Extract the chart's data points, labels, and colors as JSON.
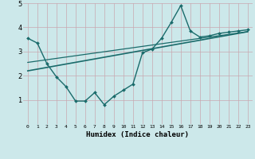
{
  "xlabel": "Humidex (Indice chaleur)",
  "bg_color": "#cce8ea",
  "grid_color": "#add8dc",
  "line_color": "#1a6b6b",
  "xlim": [
    -0.5,
    23.5
  ],
  "ylim": [
    0,
    5
  ],
  "xticks": [
    0,
    1,
    2,
    3,
    4,
    5,
    6,
    7,
    8,
    9,
    10,
    11,
    12,
    13,
    14,
    15,
    16,
    17,
    18,
    19,
    20,
    21,
    22,
    23
  ],
  "yticks": [
    1,
    2,
    3,
    4,
    5
  ],
  "curve_x": [
    0,
    1,
    2,
    3,
    4,
    5,
    6,
    7,
    8,
    9,
    10,
    11,
    12,
    13,
    14,
    15,
    16,
    17,
    18,
    19,
    20,
    21,
    22,
    23
  ],
  "curve_y": [
    3.55,
    3.35,
    2.5,
    1.95,
    1.55,
    0.95,
    0.95,
    1.3,
    0.8,
    1.15,
    1.4,
    1.65,
    2.95,
    3.1,
    3.55,
    4.2,
    4.9,
    3.85,
    3.6,
    3.65,
    3.75,
    3.8,
    3.85,
    3.9
  ],
  "line1_x": [
    0,
    23
  ],
  "line1_y": [
    2.2,
    3.82
  ],
  "line2_x": [
    0,
    23
  ],
  "line2_y": [
    2.55,
    3.82
  ]
}
